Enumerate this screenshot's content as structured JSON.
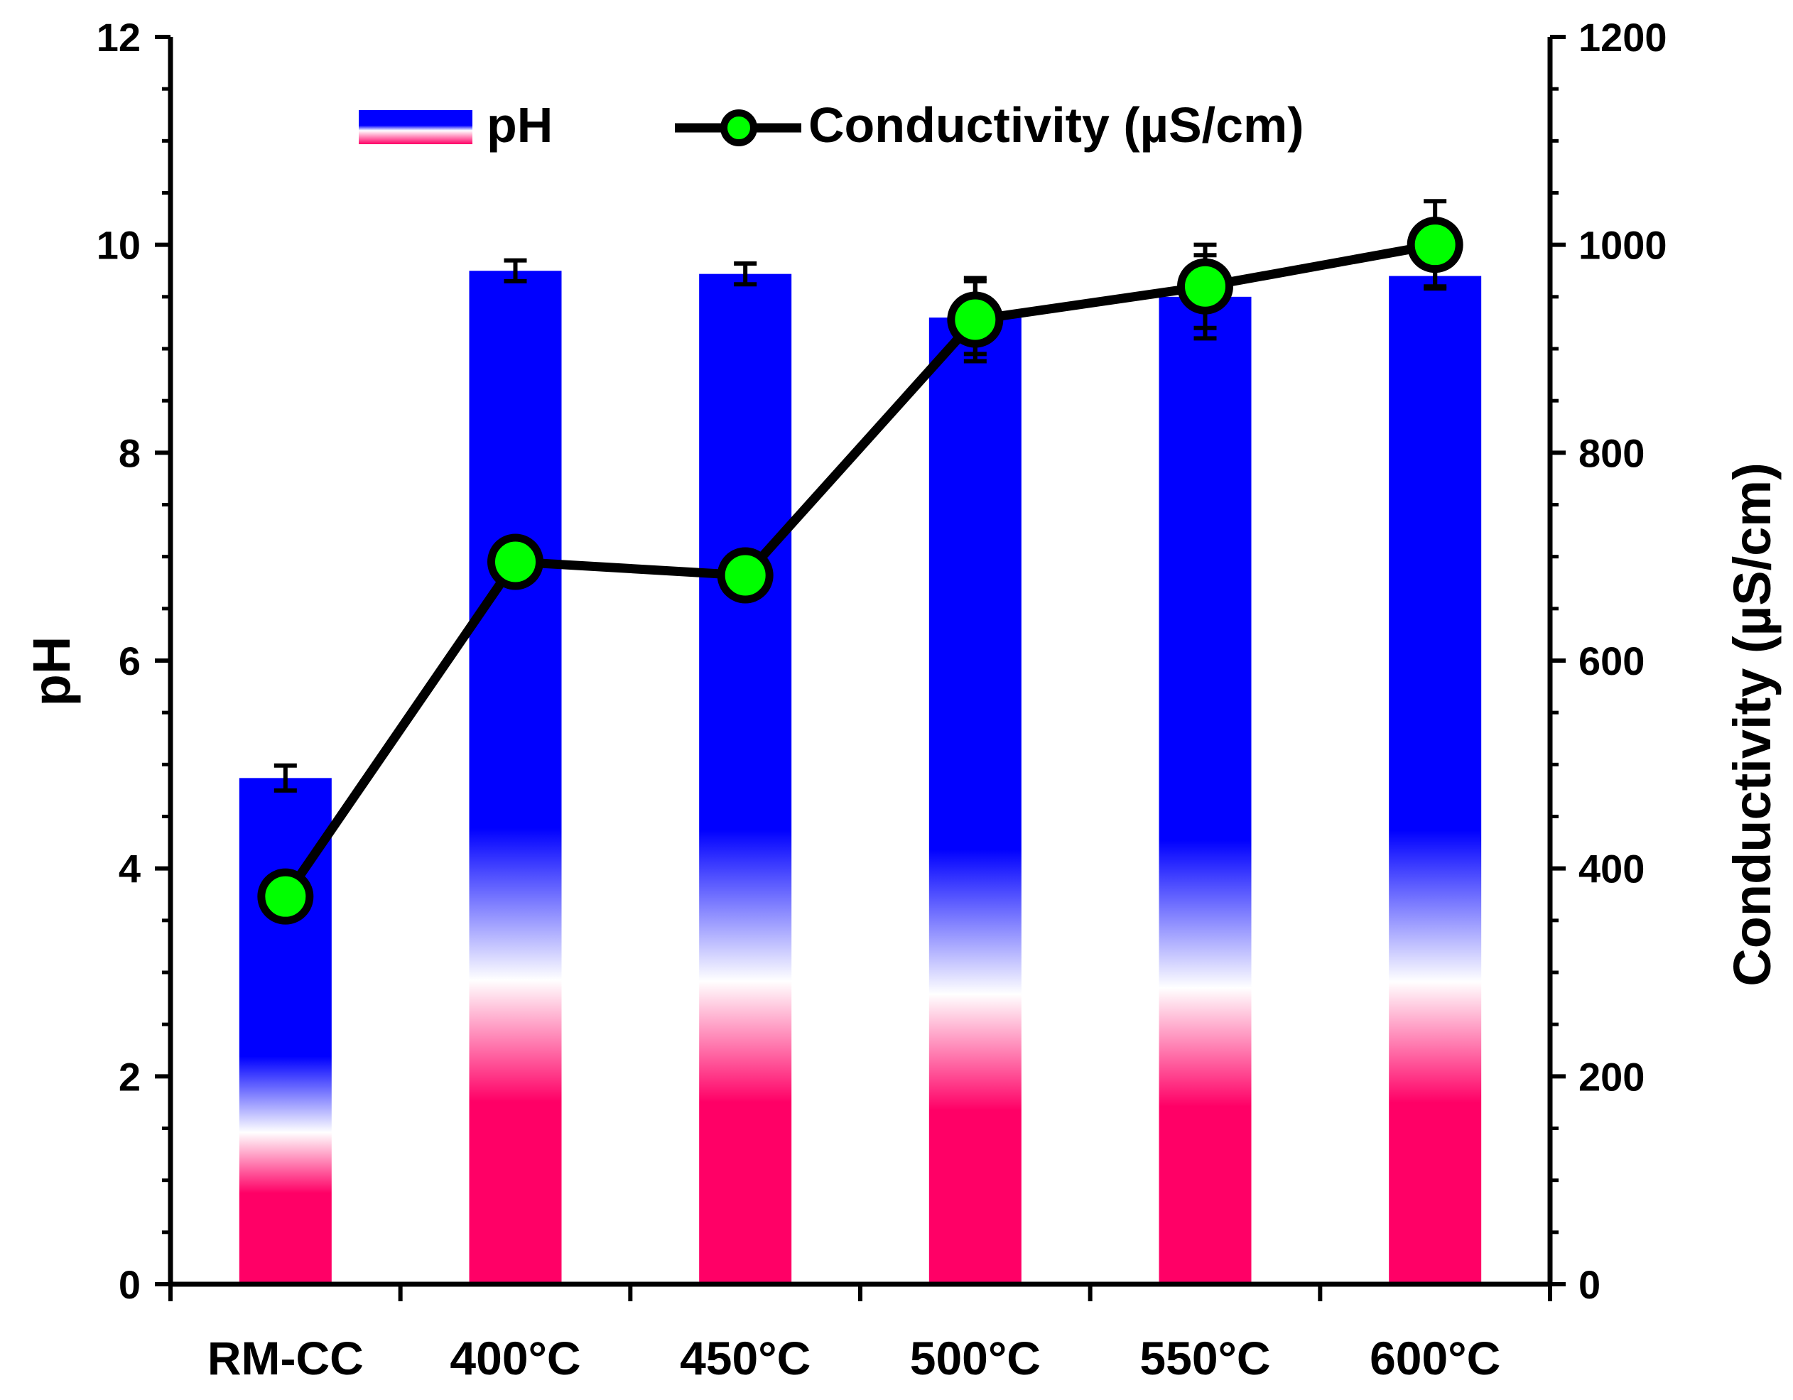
{
  "chart_data": {
    "type": "bar+line",
    "categories": [
      "RM-CC",
      "400°C",
      "450°C",
      "500°C",
      "550°C",
      "600°C"
    ],
    "series": [
      {
        "name": "pH",
        "kind": "bar",
        "axis": "left",
        "values": [
          4.87,
          9.75,
          9.72,
          9.3,
          9.5,
          9.7
        ],
        "errors": [
          0.12,
          0.1,
          0.1,
          0.35,
          0.4,
          0.1
        ]
      },
      {
        "name": "Conductivity (µS/cm)",
        "kind": "line",
        "axis": "right",
        "values": [
          373,
          695,
          682,
          928,
          960,
          1000
        ],
        "errors": [
          10,
          10,
          10,
          40,
          40,
          42
        ]
      }
    ],
    "ylabel_left": "pH",
    "ylim_left": [
      0,
      12
    ],
    "yticks_left": [
      "0",
      "2",
      "4",
      "6",
      "8",
      "10",
      "12"
    ],
    "ylabel_right": "Conductivity (µS/cm)",
    "ylim_right": [
      0,
      1200
    ],
    "yticks_right": [
      "0",
      "200",
      "400",
      "600",
      "800",
      "1000",
      "1200"
    ],
    "legend": [
      "pH",
      "Conductivity (µS/cm)"
    ],
    "legend_position": "top-center",
    "grid": false,
    "colors": {
      "bar_top": "#0000ff",
      "bar_middle": "#ffffff",
      "bar_bottom": "#ff0066",
      "line": "#000000",
      "marker": "#00ff00"
    }
  }
}
